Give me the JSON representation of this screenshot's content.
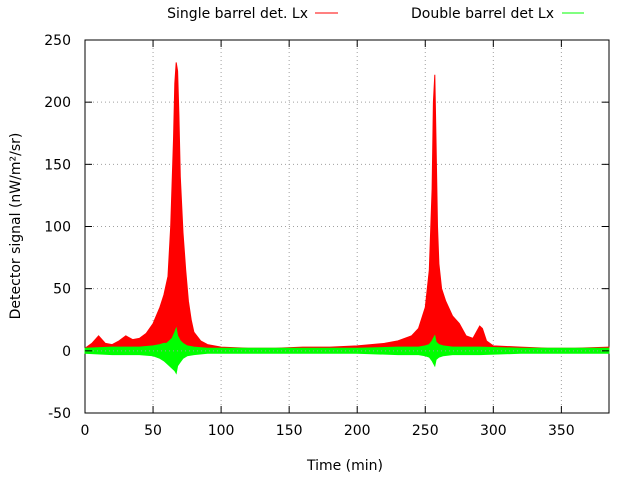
{
  "chart_data": {
    "type": "area",
    "xlabel": "Time (min)",
    "ylabel": "Detector signal (nW/m²/sr)",
    "xlim": [
      0,
      385
    ],
    "ylim": [
      -50,
      250
    ],
    "xticks": [
      "0",
      "50",
      "100",
      "150",
      "200",
      "250",
      "300",
      "350"
    ],
    "yticks": [
      "250",
      "200",
      "150",
      "100",
      "50",
      "0",
      "-50"
    ],
    "grid": true,
    "legend_position": "top",
    "series": [
      {
        "name": "Single barrel det. Lx",
        "color": "#ff0000",
        "x": [
          0,
          5,
          10,
          15,
          20,
          25,
          30,
          35,
          40,
          45,
          50,
          55,
          58,
          61,
          63,
          65,
          66,
          67,
          68,
          69,
          70,
          72,
          74,
          76,
          78,
          80,
          85,
          90,
          100,
          120,
          140,
          160,
          180,
          200,
          220,
          230,
          240,
          245,
          250,
          253,
          255,
          256,
          257,
          258,
          259,
          260,
          262,
          265,
          270,
          275,
          280,
          285,
          290,
          292,
          295,
          300,
          320,
          340,
          360,
          385
        ],
        "upper": [
          2,
          6,
          12,
          6,
          5,
          8,
          12,
          9,
          10,
          14,
          22,
          35,
          45,
          60,
          100,
          170,
          215,
          232,
          225,
          190,
          140,
          95,
          65,
          40,
          25,
          15,
          8,
          5,
          3,
          2,
          2,
          3,
          3,
          4,
          6,
          8,
          12,
          18,
          35,
          65,
          130,
          200,
          222,
          165,
          100,
          70,
          50,
          40,
          28,
          22,
          12,
          10,
          20,
          18,
          8,
          4,
          3,
          2,
          2,
          3
        ],
        "lower": [
          0,
          0,
          0,
          0,
          0,
          0,
          0,
          0,
          0,
          0,
          0,
          0,
          0,
          0,
          0,
          0,
          0,
          0,
          0,
          0,
          0,
          0,
          0,
          0,
          0,
          0,
          0,
          0,
          0,
          0,
          0,
          0,
          0,
          0,
          0,
          0,
          0,
          0,
          0,
          0,
          0,
          0,
          0,
          0,
          0,
          0,
          0,
          0,
          0,
          0,
          0,
          0,
          0,
          0,
          0,
          0,
          0,
          0,
          0,
          0
        ]
      },
      {
        "name": "Double barrel det Lx",
        "color": "#00ff00",
        "x": [
          0,
          20,
          40,
          50,
          55,
          58,
          60,
          62,
          64,
          66,
          67,
          68,
          70,
          72,
          75,
          80,
          90,
          120,
          160,
          200,
          230,
          245,
          250,
          253,
          255,
          256,
          257,
          258,
          260,
          263,
          270,
          290,
          320,
          360,
          385
        ],
        "upper": [
          2,
          3,
          3,
          4,
          5,
          6,
          6,
          8,
          10,
          15,
          18,
          12,
          8,
          6,
          4,
          3,
          2,
          2,
          2,
          2,
          3,
          3,
          4,
          5,
          8,
          10,
          12,
          7,
          5,
          4,
          3,
          3,
          2,
          2,
          2
        ],
        "lower": [
          -2,
          -3,
          -3,
          -4,
          -6,
          -8,
          -10,
          -12,
          -14,
          -16,
          -18,
          -12,
          -9,
          -6,
          -4,
          -3,
          -2,
          -2,
          -2,
          -2,
          -3,
          -3,
          -4,
          -5,
          -8,
          -10,
          -12,
          -7,
          -5,
          -4,
          -3,
          -3,
          -2,
          -2,
          -2
        ]
      }
    ]
  }
}
